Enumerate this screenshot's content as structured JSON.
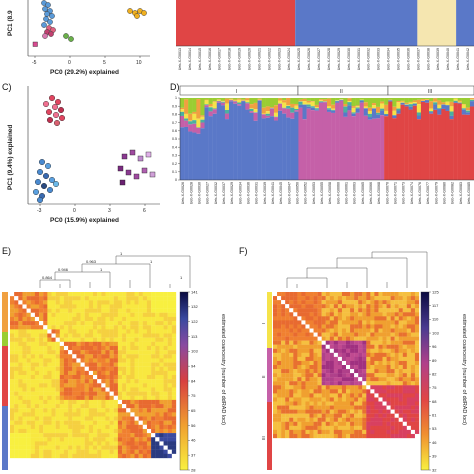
{
  "panels": {
    "A": {
      "letter": "",
      "xlabel": "PC0 (29.2%) explained",
      "ylabel": "PC1 (8.9",
      "xticks": [
        "-5",
        "0",
        "5",
        "10"
      ]
    },
    "B": {
      "letter": "",
      "bands": [
        {
          "color": "#e04545",
          "frac": 0.4
        },
        {
          "color": "#5a78c8",
          "frac": 0.41
        },
        {
          "color": "#f5e6b0",
          "frac": 0.13
        },
        {
          "color": "#5a78c8",
          "frac": 0.06
        }
      ],
      "xtick_labels": [
        "Ueb-X-G0013",
        "Ueb-X-G0014",
        "Ueb-X-G0015",
        "Ueb-X-G0016",
        "Ueb-X-G0017",
        "Ueb-X-G0018",
        "Ueb-X-G0019",
        "Ueb-X-G0020",
        "Ueb-X-G0021",
        "Ueb-X-G0022",
        "Ueb-X-G0023",
        "Ueb-X-G0024",
        "Ueb-X-G0025",
        "Ueb-X-G0026",
        "Ueb-X-G0027",
        "Ueb-X-G0028",
        "Ueb-X-G0029",
        "Ueb-X-G0030",
        "Ueb-X-G0031",
        "Ueb-X-G0032",
        "Ueb-X-G0033",
        "Ueb-X-G0034",
        "Ueb-X-G0035",
        "Ueb-X-G0036",
        "Ueb-X-G0037",
        "Ueb-X-G0038",
        "Ueb-X-G0039",
        "Ueb-X-G0040",
        "Ueb-X-G0041",
        "Ueb-X-G0042"
      ]
    },
    "C": {
      "letter": "C)",
      "xlabel": "PC0 (15.9%) explained",
      "ylabel": "PC1 (9.4%) explained",
      "xticks": [
        "-3",
        "0",
        "3",
        "6"
      ]
    },
    "D": {
      "letter": "D)",
      "yticks": [
        "0",
        "0.1",
        "0.2",
        "0.3",
        "0.4",
        "0.5",
        "0.6",
        "0.7",
        "0.8",
        "0.9",
        "1"
      ],
      "groups": [
        "I",
        "II",
        "III"
      ],
      "xtick_labels": [
        "Ueb-X-G0026",
        "Ueb-X-G0028",
        "Ueb-X-G0030",
        "Ueb-X-G0027",
        "Ueb-X-G0032",
        "Ueb-X-G0037",
        "Ueb-X-G0029",
        "Ueb-X-G0034",
        "Ueb-X-G0036",
        "Ueb-X-G0031",
        "Ueb-X-G0039",
        "Ueb-X-G0041",
        "Ueb-X-G0045",
        "Ueb-X-G0047",
        "Ueb-X-G0050",
        "Ueb-X-G0052",
        "Ueb-X-G0053",
        "Ueb-X-G0055",
        "Ueb-X-G0058",
        "Ueb-X-G0060",
        "Ueb-X-G0061",
        "Ueb-X-G0063",
        "Ueb-X-G0065",
        "Ueb-X-G0066",
        "Ueb-X-G0068",
        "Ueb-X-G0070",
        "Ueb-X-G0071",
        "Ueb-X-G0073",
        "Ueb-X-G0074",
        "Ueb-X-G0076",
        "Ueb-X-G0077",
        "Ueb-X-G0079",
        "Ueb-X-G0080",
        "Ueb-X-G0082",
        "Ueb-X-G0083",
        "Ueb-X-G0085"
      ]
    },
    "E": {
      "letter": "E)",
      "colorbar_label": "estimated coancestry (number of ddRAD loci)",
      "colorbar_ticks": [
        "141",
        "132",
        "122",
        "113",
        "103",
        "94",
        "84",
        "75",
        "65",
        "56",
        "46",
        "37",
        "28"
      ],
      "dendro_values": [
        "0.864",
        "0.946",
        "0.963",
        "1",
        "1",
        "1",
        "1"
      ]
    },
    "F": {
      "letter": "F)",
      "colorbar_label": "estimated coancestry (number of ddRAD loci)",
      "colorbar_ticks": [
        "125",
        "117",
        "110",
        "103",
        "96",
        "89",
        "82",
        "75",
        "68",
        "61",
        "53",
        "46",
        "39",
        "32"
      ],
      "group_labels": [
        "I",
        "II",
        "III"
      ]
    }
  },
  "colors": {
    "red": "#e04545",
    "blue": "#5a78c8",
    "pink": "#c560a8",
    "cream": "#f5e6b0",
    "green": "#9acd32",
    "yellow": "#f5e34a",
    "orange": "#f0a040"
  }
}
